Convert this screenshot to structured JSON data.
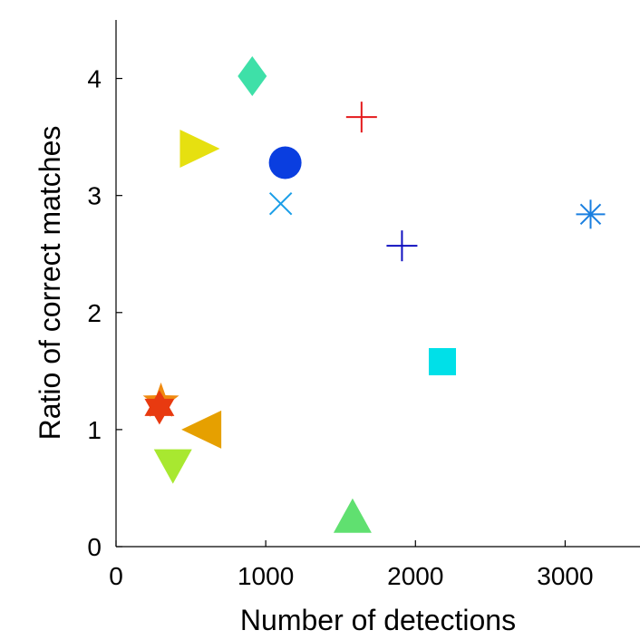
{
  "chart_data": {
    "type": "scatter",
    "xlabel": "Number of detections",
    "ylabel": "Ratio of correct matches",
    "xlim": [
      0,
      3500
    ],
    "ylim": [
      0,
      4.5
    ],
    "x_ticks": [
      "0",
      "1000",
      "2000",
      "3000"
    ],
    "y_ticks": [
      "0",
      "1",
      "2",
      "3",
      "4"
    ],
    "grid": false,
    "points": [
      {
        "marker": "diamond",
        "x": 910,
        "y": 4.02,
        "color": "#3ee0a8"
      },
      {
        "marker": "plus",
        "x": 1640,
        "y": 3.67,
        "color": "#e41a1c"
      },
      {
        "marker": "triangle-right",
        "x": 560,
        "y": 3.4,
        "color": "#e6e010"
      },
      {
        "marker": "circle",
        "x": 1130,
        "y": 3.28,
        "color": "#0a3ee0"
      },
      {
        "marker": "x",
        "x": 1100,
        "y": 2.93,
        "color": "#1a9ee8"
      },
      {
        "marker": "asterisk",
        "x": 3170,
        "y": 2.84,
        "color": "#1a7fe0"
      },
      {
        "marker": "plus",
        "x": 1910,
        "y": 2.57,
        "color": "#1010c0"
      },
      {
        "marker": "square",
        "x": 2180,
        "y": 1.58,
        "color": "#00e0e8"
      },
      {
        "marker": "pentagram",
        "x": 300,
        "y": 1.24,
        "color": "#f08a10"
      },
      {
        "marker": "hexagram",
        "x": 290,
        "y": 1.19,
        "color": "#e83a10"
      },
      {
        "marker": "triangle-left",
        "x": 570,
        "y": 1.0,
        "color": "#e6a000"
      },
      {
        "marker": "triangle-down",
        "x": 380,
        "y": 0.7,
        "color": "#a8e830"
      },
      {
        "marker": "triangle-up",
        "x": 1580,
        "y": 0.25,
        "color": "#60e070"
      }
    ]
  }
}
